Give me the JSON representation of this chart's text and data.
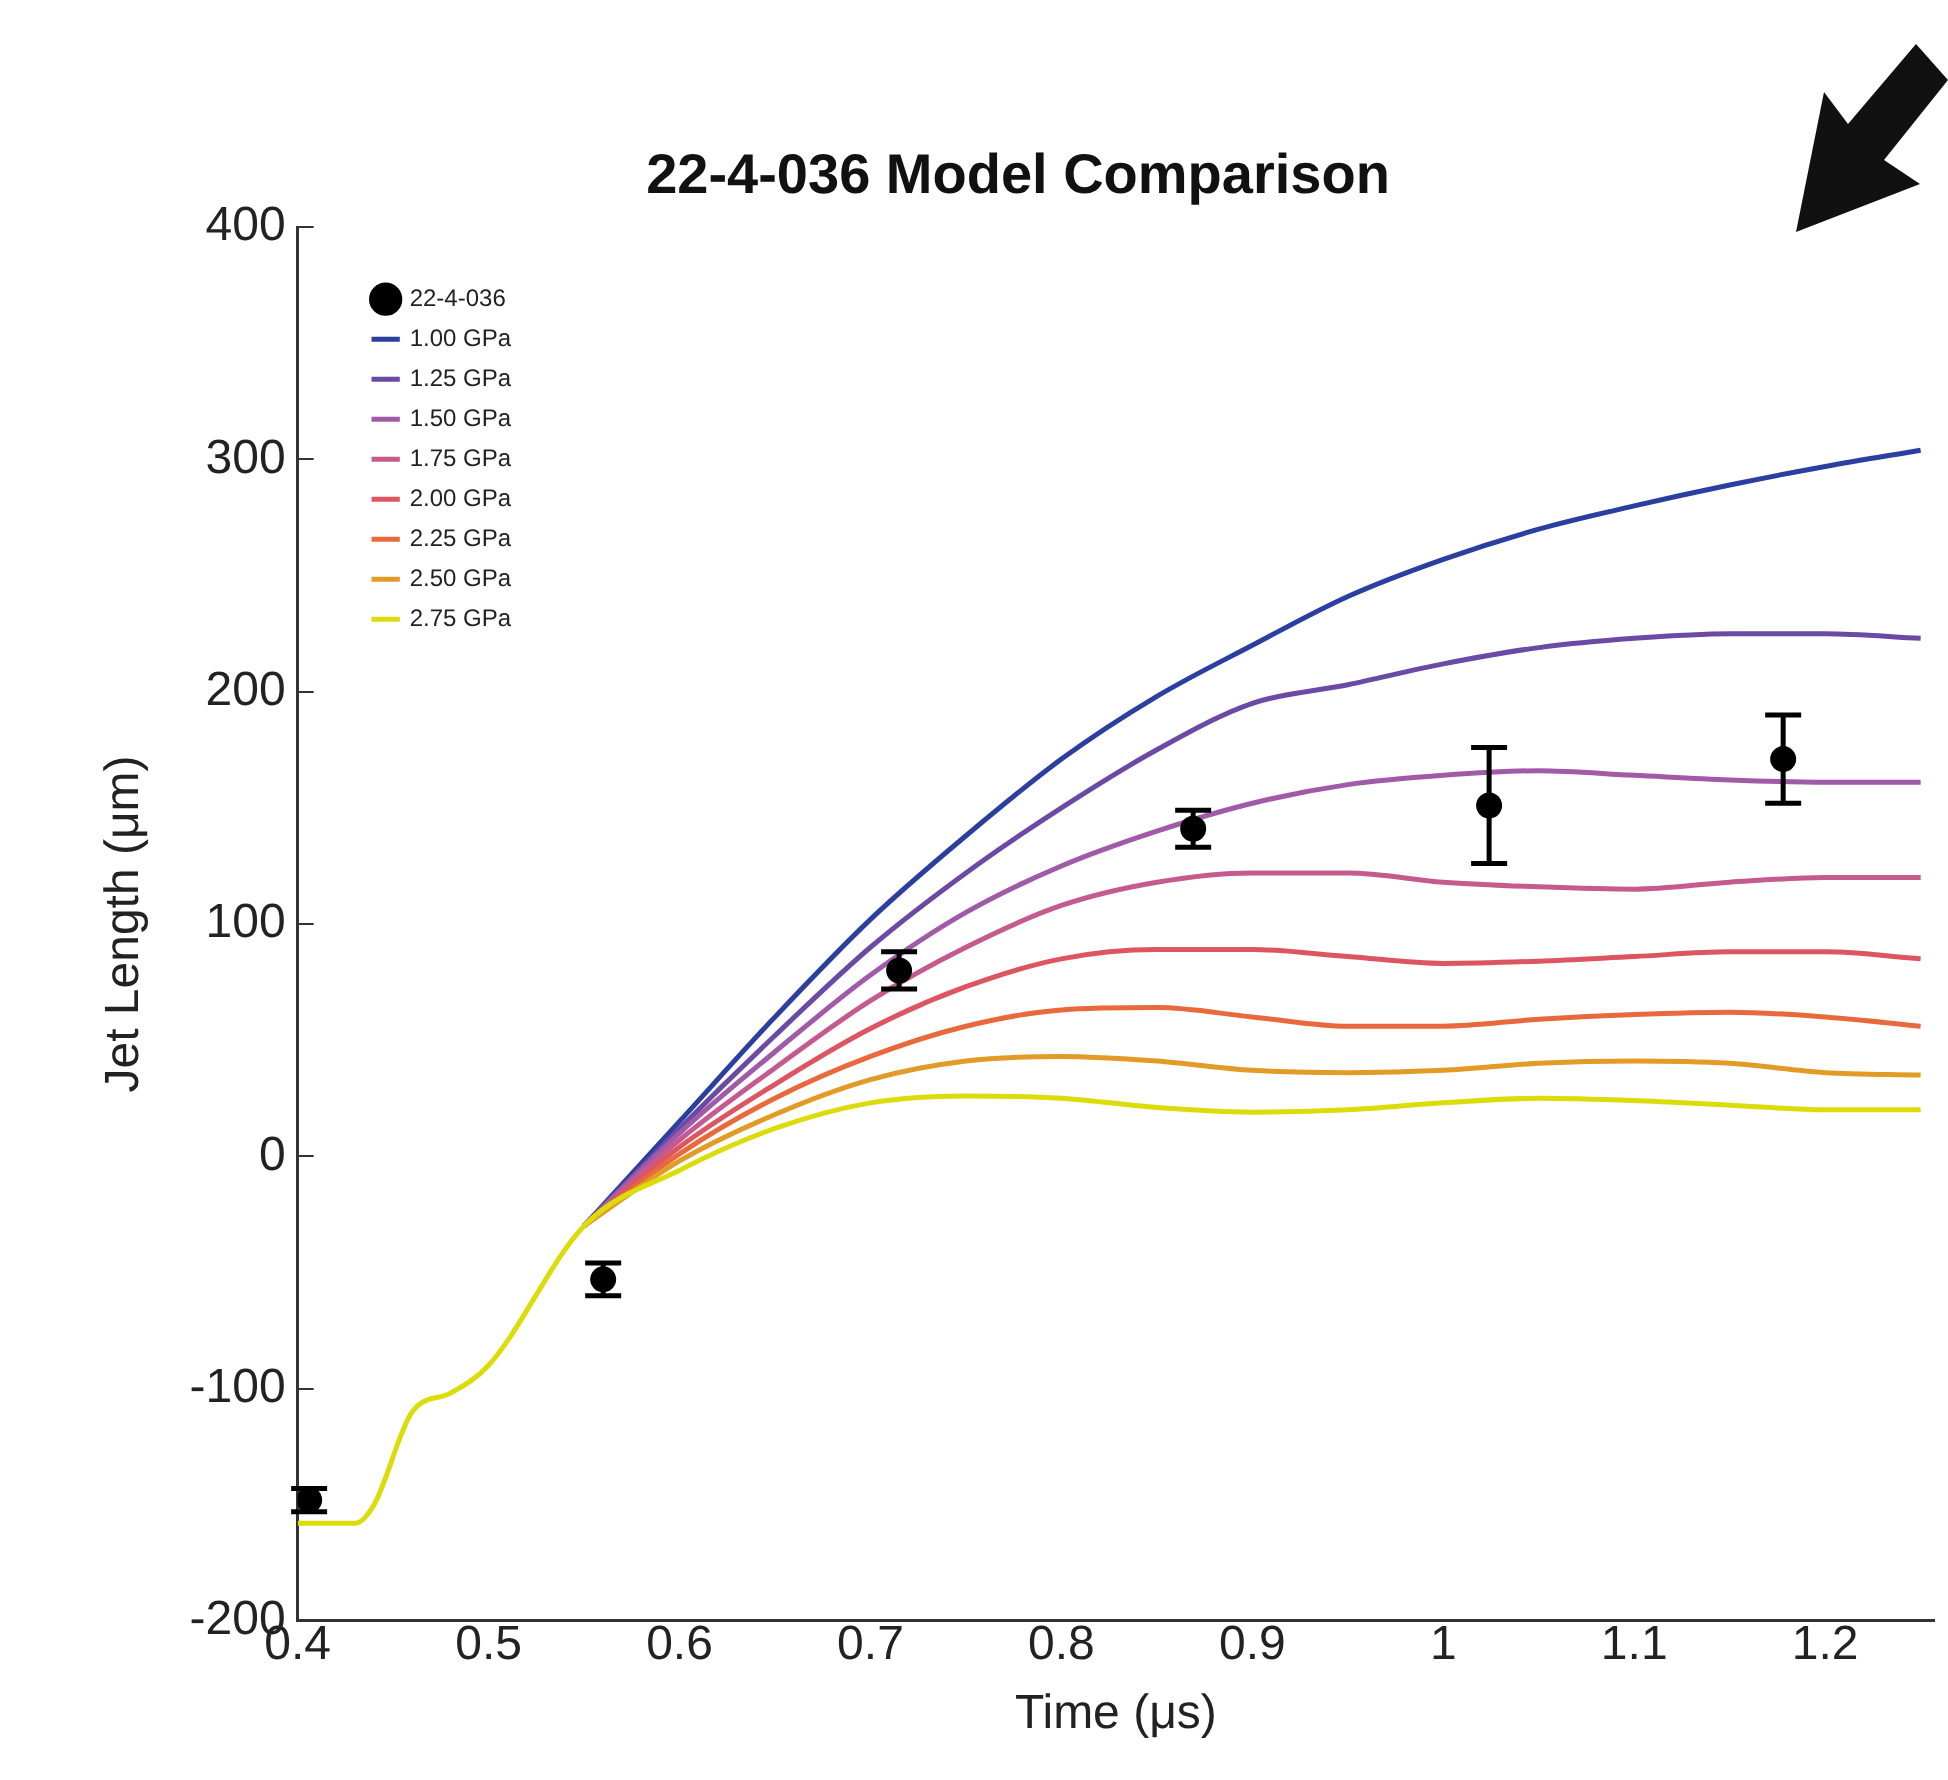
{
  "chart_data": {
    "type": "line",
    "title": "22-4-036 Model Comparison",
    "xlabel": "Time (μs)",
    "ylabel": "Jet Length (μm)",
    "xlim": [
      0.4,
      1.257
    ],
    "xticks": [
      0.4,
      0.5,
      0.6,
      0.7,
      0.8,
      0.9,
      1,
      1.1,
      1.2
    ],
    "ylim": [
      -200,
      400
    ],
    "yticks": [
      -200,
      -100,
      0,
      100,
      200,
      300,
      400
    ],
    "grid": false,
    "legend": "top left",
    "x": [
      0.4,
      0.43,
      0.44,
      0.46,
      0.48,
      0.5,
      0.55,
      0.6,
      0.65,
      0.7,
      0.75,
      0.8,
      0.85,
      0.9,
      0.95,
      1.0,
      1.05,
      1.1,
      1.15,
      1.2,
      1.25
    ],
    "series": [
      {
        "name": "22-4-036",
        "type": "scatter",
        "color": "#000000",
        "x": [
          0.406,
          0.56,
          0.715,
          0.869,
          1.024,
          1.178
        ],
        "values": [
          -148,
          -53,
          80,
          141,
          151,
          171
        ],
        "errors": [
          5,
          7,
          8,
          8,
          25,
          19
        ]
      },
      {
        "name": "1.00 GPa",
        "color": "#2a3fa0",
        "values": [
          null,
          null,
          null,
          null,
          null,
          null,
          -30,
          15,
          60,
          102,
          138,
          171,
          198,
          220,
          241,
          257,
          270,
          280,
          289,
          297,
          304
        ]
      },
      {
        "name": "1.25 GPa",
        "color": "#6b4aa6",
        "values": [
          null,
          null,
          null,
          null,
          null,
          null,
          -30,
          12,
          52,
          90,
          122,
          150,
          175,
          195,
          203,
          212,
          219,
          223,
          225,
          225,
          223
        ]
      },
      {
        "name": "1.50 GPa",
        "color": "#a05aa8",
        "values": [
          null,
          null,
          null,
          null,
          null,
          null,
          -30,
          10,
          45,
          78,
          105,
          125,
          140,
          152,
          160,
          164,
          166,
          164,
          162,
          161,
          161
        ]
      },
      {
        "name": "1.75 GPa",
        "color": "#c55a8e",
        "values": [
          null,
          null,
          null,
          null,
          null,
          null,
          -30,
          7,
          38,
          67,
          90,
          108,
          118,
          122,
          122,
          118,
          116,
          115,
          118,
          120,
          120
        ]
      },
      {
        "name": "2.00 GPa",
        "color": "#dc5560",
        "values": [
          null,
          null,
          null,
          null,
          null,
          null,
          -30,
          4,
          31,
          55,
          73,
          85,
          89,
          89,
          86,
          83,
          84,
          86,
          88,
          88,
          85
        ]
      },
      {
        "name": "2.25 GPa",
        "color": "#e86a3c",
        "values": [
          null,
          null,
          null,
          null,
          null,
          null,
          -30,
          1,
          25,
          43,
          56,
          63,
          64,
          60,
          56,
          56,
          59,
          61,
          62,
          60,
          56
        ]
      },
      {
        "name": "2.50 GPa",
        "color": "#e29b27",
        "values": [
          null,
          null,
          null,
          null,
          null,
          null,
          -30,
          -2,
          18,
          33,
          41,
          43,
          41,
          37,
          36,
          37,
          40,
          41,
          40,
          36,
          35
        ]
      },
      {
        "name": "2.75 GPa",
        "color": "#dcdc0a",
        "values": [
          -158,
          -158,
          -150,
          -110,
          -102,
          -90,
          -30,
          -6,
          12,
          23,
          26,
          25,
          21,
          19,
          20,
          23,
          25,
          24,
          22,
          20,
          20
        ]
      }
    ]
  }
}
